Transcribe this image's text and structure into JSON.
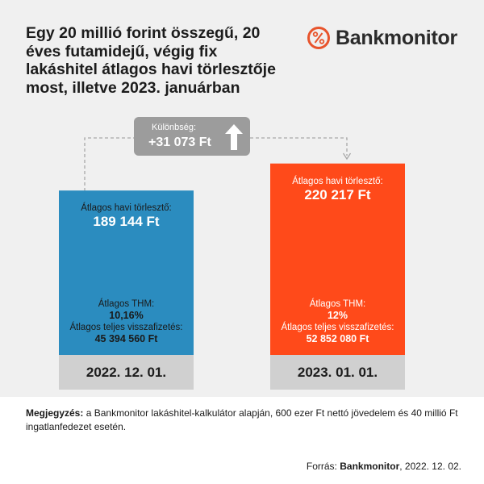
{
  "title": "Egy 20 millió forint összegű, 20 éves futamidejű, végig fix lakáshitel átlagos havi törlesztője most, illetve 2023. januárban",
  "logo": {
    "text": "Bankmonitor",
    "icon": "percent-circle-icon",
    "color": "#e8542c"
  },
  "difference": {
    "label": "Különbség:",
    "value": "+31 073 Ft",
    "icon": "up-arrow-icon"
  },
  "chart_data": {
    "type": "bar",
    "categories": [
      "2022. 12. 01.",
      "2023. 01. 01."
    ],
    "values": [
      189144,
      220217
    ],
    "ylim": [
      0,
      245000
    ],
    "colors": [
      "#2b8cbf",
      "#ff4a1a"
    ],
    "bars": [
      {
        "payment_label": "Átlagos havi törlesztő:",
        "payment_value": "189 144 Ft",
        "thm_label": "Átlagos THM:",
        "thm_value": "10,16%",
        "total_label": "Átlagos teljes visszafizetés:",
        "total_value": "45 394 560 Ft"
      },
      {
        "payment_label": "Átlagos havi törlesztő:",
        "payment_value": "220 217 Ft",
        "thm_label": "Átlagos THM:",
        "thm_value": "12%",
        "total_label": "Átlagos teljes visszafizetés:",
        "total_value": "52 852 080 Ft"
      }
    ]
  },
  "note": {
    "label": "Megjegyzés:",
    "text": "a Bankmonitor lakáshitel-kalkulátor alapján, 600 ezer Ft nettó jövedelem és 40 millió Ft ingatlanfedezet esetén."
  },
  "source": {
    "label": "Forrás:",
    "name": "Bankmonitor",
    "date": ", 2022. 12. 02."
  }
}
